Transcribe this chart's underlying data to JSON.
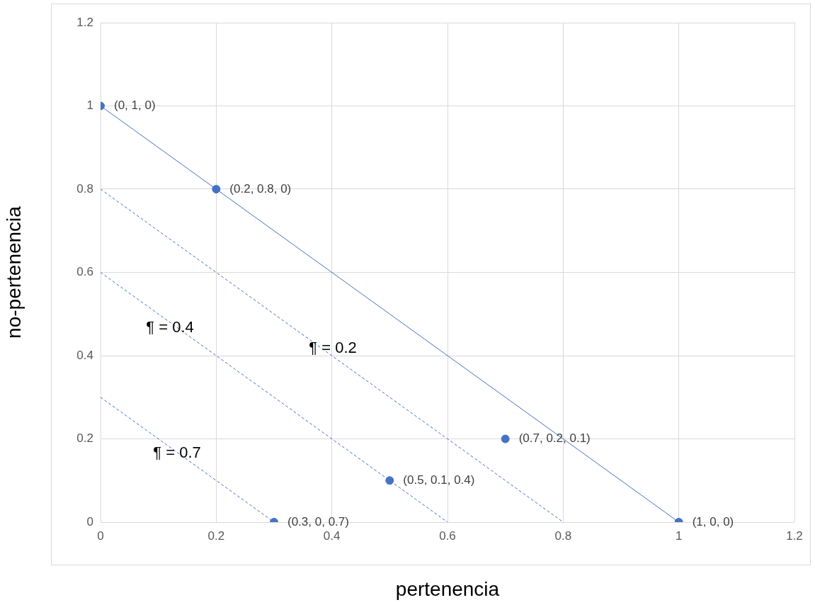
{
  "chart_data": {
    "type": "scatter",
    "xlabel": "pertenencia",
    "ylabel": "no-pertenencia",
    "xlim": [
      0,
      1.2
    ],
    "xticks": [
      0,
      0.2,
      0.4,
      0.6,
      0.8,
      1,
      1.2
    ],
    "ylim": [
      0,
      1.2
    ],
    "yticks": [
      0,
      0.2,
      0.4,
      0.6,
      0.8,
      1,
      1.2
    ],
    "grid": true,
    "legend": false,
    "series": [
      {
        "type": "line",
        "color": "#4472c4",
        "line_style": "solid",
        "marker": "none",
        "x": [
          0,
          1
        ],
        "values": [
          1,
          0
        ]
      },
      {
        "type": "line",
        "color": "#4472c4",
        "line_style": "dashed",
        "marker": "none",
        "x": [
          0,
          0.8
        ],
        "values": [
          0.8,
          0
        ]
      },
      {
        "type": "line",
        "color": "#4472c4",
        "line_style": "dashed",
        "marker": "none",
        "x": [
          0,
          0.6
        ],
        "values": [
          0.6,
          0
        ]
      },
      {
        "type": "line",
        "color": "#4472c4",
        "line_style": "dashed",
        "marker": "none",
        "x": [
          0,
          0.3
        ],
        "values": [
          0.3,
          0
        ]
      },
      {
        "type": "scatter",
        "color": "#4472c4",
        "marker": "circle",
        "x": [
          0,
          0.2,
          0.7,
          0.5,
          0.3,
          1
        ],
        "values": [
          1,
          0.8,
          0.2,
          0.1,
          0,
          0
        ],
        "value_labels": [
          "(0, 1, 0)",
          "(0.2, 0.8, 0)",
          "(0.7, 0.2, 0.1)",
          "(0.5, 0.1, 0.4)",
          "(0.3, 0, 0.7)",
          "(1, 0, 0)"
        ]
      }
    ],
    "annotations": [
      "¶ = 0.4",
      "¶ = 0.2",
      "¶ = 0.7"
    ]
  }
}
